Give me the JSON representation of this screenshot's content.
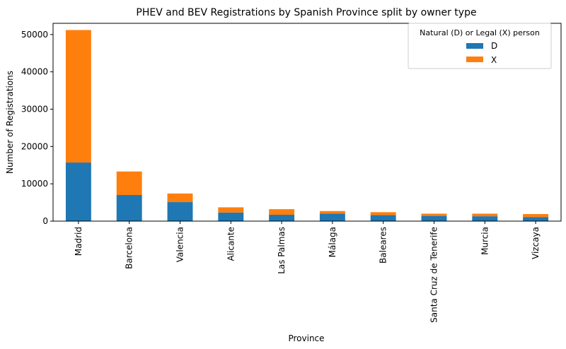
{
  "chart_data": {
    "type": "bar",
    "stacked": true,
    "title": "PHEV and BEV Registrations by Spanish Province split by owner type",
    "xlabel": "Province",
    "ylabel": "Number of Registrations",
    "categories": [
      "Madrid",
      "Barcelona",
      "Valencia",
      "Alicante",
      "Las Palmas",
      "Málaga",
      "Baleares",
      "Santa Cruz de Tenerife",
      "Murcia",
      "Vizcaya"
    ],
    "series": [
      {
        "name": "D",
        "color": "#1f77b4",
        "values": [
          15700,
          7000,
          5100,
          2300,
          1700,
          2000,
          1600,
          1400,
          1300,
          1100
        ]
      },
      {
        "name": "X",
        "color": "#ff7f0e",
        "values": [
          35500,
          6300,
          2300,
          1400,
          1500,
          700,
          800,
          600,
          700,
          800
        ]
      }
    ],
    "ylim": [
      0,
      53000
    ],
    "yticks": [
      0,
      10000,
      20000,
      30000,
      40000,
      50000
    ],
    "grid": false,
    "legend": {
      "title": "Natural (D) or Legal (X) person",
      "position": "top-right"
    }
  }
}
